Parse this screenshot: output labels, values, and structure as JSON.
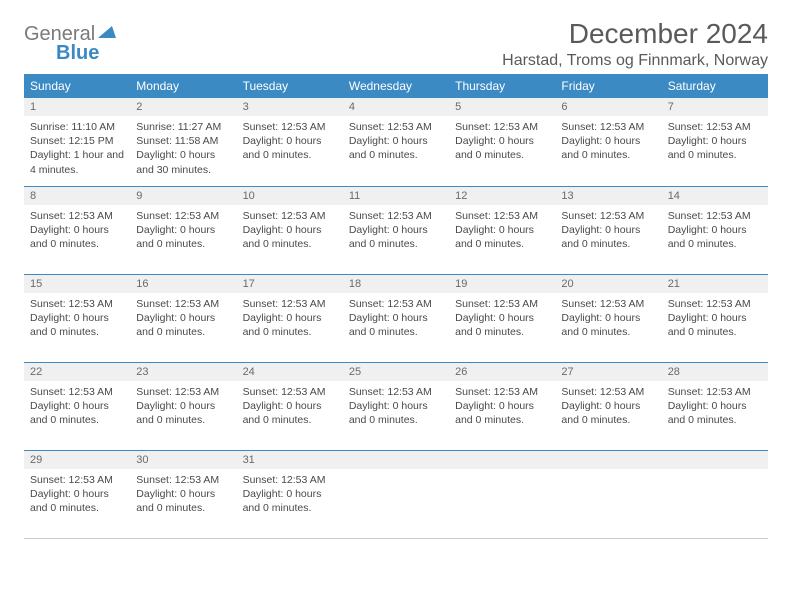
{
  "logo": {
    "line1": "General",
    "line2": "Blue"
  },
  "title": "December 2024",
  "subtitle": "Harstad, Troms og Finnmark, Norway",
  "colors": {
    "header_bg": "#3b8ac4",
    "header_text": "#ffffff",
    "daynum_bg": "#f0f0f0",
    "daynum_text": "#6a6a6a",
    "cell_border": "#3b8ac4",
    "body_text": "#4a4a4a",
    "title_text": "#5a5a5a"
  },
  "weekdays": [
    "Sunday",
    "Monday",
    "Tuesday",
    "Wednesday",
    "Thursday",
    "Friday",
    "Saturday"
  ],
  "weeks": [
    [
      {
        "n": "1",
        "lines": [
          "Sunrise: 11:10 AM",
          "Sunset: 12:15 PM",
          "Daylight: 1 hour and 4 minutes."
        ]
      },
      {
        "n": "2",
        "lines": [
          "Sunrise: 11:27 AM",
          "Sunset: 11:58 AM",
          "Daylight: 0 hours and 30 minutes."
        ]
      },
      {
        "n": "3",
        "lines": [
          "",
          "Sunset: 12:53 AM",
          "Daylight: 0 hours and 0 minutes."
        ]
      },
      {
        "n": "4",
        "lines": [
          "",
          "Sunset: 12:53 AM",
          "Daylight: 0 hours and 0 minutes."
        ]
      },
      {
        "n": "5",
        "lines": [
          "",
          "Sunset: 12:53 AM",
          "Daylight: 0 hours and 0 minutes."
        ]
      },
      {
        "n": "6",
        "lines": [
          "",
          "Sunset: 12:53 AM",
          "Daylight: 0 hours and 0 minutes."
        ]
      },
      {
        "n": "7",
        "lines": [
          "",
          "Sunset: 12:53 AM",
          "Daylight: 0 hours and 0 minutes."
        ]
      }
    ],
    [
      {
        "n": "8",
        "lines": [
          "",
          "Sunset: 12:53 AM",
          "Daylight: 0 hours and 0 minutes."
        ]
      },
      {
        "n": "9",
        "lines": [
          "",
          "Sunset: 12:53 AM",
          "Daylight: 0 hours and 0 minutes."
        ]
      },
      {
        "n": "10",
        "lines": [
          "",
          "Sunset: 12:53 AM",
          "Daylight: 0 hours and 0 minutes."
        ]
      },
      {
        "n": "11",
        "lines": [
          "",
          "Sunset: 12:53 AM",
          "Daylight: 0 hours and 0 minutes."
        ]
      },
      {
        "n": "12",
        "lines": [
          "",
          "Sunset: 12:53 AM",
          "Daylight: 0 hours and 0 minutes."
        ]
      },
      {
        "n": "13",
        "lines": [
          "",
          "Sunset: 12:53 AM",
          "Daylight: 0 hours and 0 minutes."
        ]
      },
      {
        "n": "14",
        "lines": [
          "",
          "Sunset: 12:53 AM",
          "Daylight: 0 hours and 0 minutes."
        ]
      }
    ],
    [
      {
        "n": "15",
        "lines": [
          "",
          "Sunset: 12:53 AM",
          "Daylight: 0 hours and 0 minutes."
        ]
      },
      {
        "n": "16",
        "lines": [
          "",
          "Sunset: 12:53 AM",
          "Daylight: 0 hours and 0 minutes."
        ]
      },
      {
        "n": "17",
        "lines": [
          "",
          "Sunset: 12:53 AM",
          "Daylight: 0 hours and 0 minutes."
        ]
      },
      {
        "n": "18",
        "lines": [
          "",
          "Sunset: 12:53 AM",
          "Daylight: 0 hours and 0 minutes."
        ]
      },
      {
        "n": "19",
        "lines": [
          "",
          "Sunset: 12:53 AM",
          "Daylight: 0 hours and 0 minutes."
        ]
      },
      {
        "n": "20",
        "lines": [
          "",
          "Sunset: 12:53 AM",
          "Daylight: 0 hours and 0 minutes."
        ]
      },
      {
        "n": "21",
        "lines": [
          "",
          "Sunset: 12:53 AM",
          "Daylight: 0 hours and 0 minutes."
        ]
      }
    ],
    [
      {
        "n": "22",
        "lines": [
          "",
          "Sunset: 12:53 AM",
          "Daylight: 0 hours and 0 minutes."
        ]
      },
      {
        "n": "23",
        "lines": [
          "",
          "Sunset: 12:53 AM",
          "Daylight: 0 hours and 0 minutes."
        ]
      },
      {
        "n": "24",
        "lines": [
          "",
          "Sunset: 12:53 AM",
          "Daylight: 0 hours and 0 minutes."
        ]
      },
      {
        "n": "25",
        "lines": [
          "",
          "Sunset: 12:53 AM",
          "Daylight: 0 hours and 0 minutes."
        ]
      },
      {
        "n": "26",
        "lines": [
          "",
          "Sunset: 12:53 AM",
          "Daylight: 0 hours and 0 minutes."
        ]
      },
      {
        "n": "27",
        "lines": [
          "",
          "Sunset: 12:53 AM",
          "Daylight: 0 hours and 0 minutes."
        ]
      },
      {
        "n": "28",
        "lines": [
          "",
          "Sunset: 12:53 AM",
          "Daylight: 0 hours and 0 minutes."
        ]
      }
    ],
    [
      {
        "n": "29",
        "lines": [
          "",
          "Sunset: 12:53 AM",
          "Daylight: 0 hours and 0 minutes."
        ]
      },
      {
        "n": "30",
        "lines": [
          "",
          "Sunset: 12:53 AM",
          "Daylight: 0 hours and 0 minutes."
        ]
      },
      {
        "n": "31",
        "lines": [
          "",
          "Sunset: 12:53 AM",
          "Daylight: 0 hours and 0 minutes."
        ]
      },
      {
        "n": "",
        "lines": []
      },
      {
        "n": "",
        "lines": []
      },
      {
        "n": "",
        "lines": []
      },
      {
        "n": "",
        "lines": []
      }
    ]
  ]
}
